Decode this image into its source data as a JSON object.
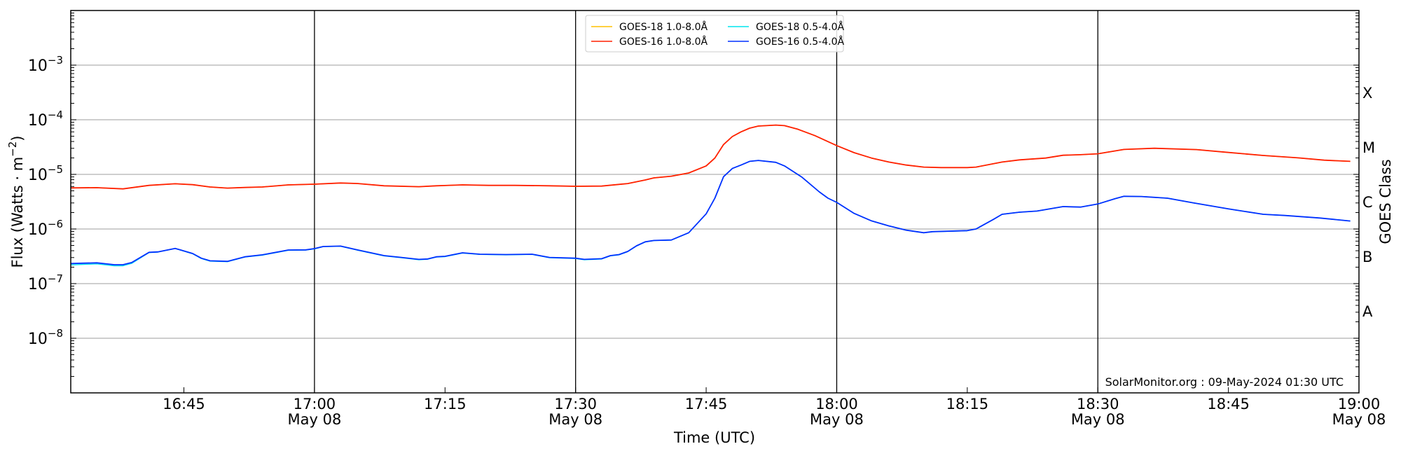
{
  "chart_data": {
    "type": "line",
    "title": "",
    "xlabel": "Time (UTC)",
    "ylabel": "Flux (Watts · m",
    "ylabel_sup": "−2",
    "ylabel_close": ")",
    "y2label": "GOES Class",
    "yscale": "log",
    "ylim": [
      1e-09,
      0.01
    ],
    "xlim": [
      "16:32",
      "19:00"
    ],
    "grid": "horizontal at decades",
    "legend_position": "top-center",
    "y_ticks": [
      {
        "value": 0.001,
        "base": "10",
        "exp": "−3"
      },
      {
        "value": 0.0001,
        "base": "10",
        "exp": "−4"
      },
      {
        "value": 1e-05,
        "base": "10",
        "exp": "−5"
      },
      {
        "value": 1e-06,
        "base": "10",
        "exp": "−6"
      },
      {
        "value": 1e-07,
        "base": "10",
        "exp": "−7"
      },
      {
        "value": 1e-08,
        "base": "10",
        "exp": "−8"
      }
    ],
    "class_labels": [
      {
        "label": "X",
        "value": 0.000316
      },
      {
        "label": "M",
        "value": 3.16e-05
      },
      {
        "label": "C",
        "value": 3.16e-06
      },
      {
        "label": "B",
        "value": 3.16e-07
      },
      {
        "label": "A",
        "value": 3.16e-08
      }
    ],
    "x_ticks": [
      {
        "time": "16:45",
        "label": "16:45",
        "date": ""
      },
      {
        "time": "17:00",
        "label": "17:00",
        "date": "May 08"
      },
      {
        "time": "17:15",
        "label": "17:15",
        "date": ""
      },
      {
        "time": "17:30",
        "label": "17:30",
        "date": "May 08"
      },
      {
        "time": "17:45",
        "label": "17:45",
        "date": ""
      },
      {
        "time": "18:00",
        "label": "18:00",
        "date": "May 08"
      },
      {
        "time": "18:15",
        "label": "18:15",
        "date": ""
      },
      {
        "time": "18:30",
        "label": "18:30",
        "date": "May 08"
      },
      {
        "time": "18:45",
        "label": "18:45",
        "date": ""
      },
      {
        "time": "19:00",
        "label": "19:00",
        "date": "May 08"
      }
    ],
    "vertical_markers": [
      "17:00",
      "17:30",
      "18:00",
      "18:30"
    ],
    "annotation": "SolarMonitor.org : 09-May-2024 01:30 UTC",
    "series": [
      {
        "name": "GOES-18 1.0-8.0Å",
        "color": "#ffc000",
        "x": [
          "16:32",
          "16:35",
          "16:38",
          "16:41",
          "16:44",
          "16:46",
          "16:48",
          "16:50",
          "16:52",
          "16:54",
          "16:57",
          "17:00",
          "17:03",
          "17:05",
          "17:08",
          "17:12",
          "17:14",
          "17:17",
          "17:20",
          "17:23",
          "17:27",
          "17:30",
          "17:33",
          "17:36",
          "17:38",
          "17:39",
          "17:41",
          "17:43",
          "17:45",
          "17:46",
          "17:47",
          "17:48",
          "17:49",
          "17:50",
          "17:51",
          "17:53",
          "17:54",
          "17:55:30",
          "17:57:30",
          "18:00",
          "18:02",
          "18:04",
          "18:06",
          "18:08",
          "18:10",
          "18:12",
          "18:15",
          "18:16",
          "18:19",
          "18:21",
          "18:24",
          "18:26",
          "18:28",
          "18:30",
          "18:33",
          "18:36:30",
          "18:41:20",
          "18:44:40",
          "18:49",
          "18:53",
          "18:56",
          "18:59"
        ],
        "values": [
          5.65e-06,
          5.7e-06,
          5.43e-06,
          6.3e-06,
          6.74e-06,
          6.48e-06,
          5.87e-06,
          5.6e-06,
          5.76e-06,
          5.87e-06,
          6.42e-06,
          6.62e-06,
          6.95e-06,
          6.8e-06,
          6.18e-06,
          5.94e-06,
          6.18e-06,
          6.42e-06,
          6.3e-06,
          6.3e-06,
          6.18e-06,
          6.05e-06,
          6.1e-06,
          6.8e-06,
          7.89e-06,
          8.63e-06,
          9.25e-06,
          1.06e-05,
          1.43e-05,
          1.99e-05,
          3.52e-05,
          4.92e-05,
          6e-05,
          7.02e-05,
          7.67e-05,
          7.98e-05,
          7.8e-05,
          6.74e-05,
          5.12e-05,
          3.36e-05,
          2.5e-05,
          1.99e-05,
          1.68e-05,
          1.48e-05,
          1.36e-05,
          1.33e-05,
          1.33e-05,
          1.36e-05,
          1.68e-05,
          1.84e-05,
          1.99e-05,
          2.24e-05,
          2.29e-05,
          2.38e-05,
          2.86e-05,
          3.01e-05,
          2.84e-05,
          2.55e-05,
          2.22e-05,
          2.01e-05,
          1.82e-05,
          1.73e-05
        ]
      },
      {
        "name": "GOES-18 0.5-4.0Å",
        "color": "#00e5ee",
        "x": [
          "16:32",
          "16:35",
          "16:37",
          "16:38",
          "16:39",
          "16:41",
          "16:42",
          "16:44",
          "16:46",
          "16:47",
          "16:48",
          "16:50",
          "16:52",
          "16:54",
          "16:57",
          "16:59",
          "17:00",
          "17:01",
          "17:03",
          "17:05",
          "17:08",
          "17:10",
          "17:12",
          "17:13",
          "17:14",
          "17:15",
          "17:17",
          "17:19",
          "17:22",
          "17:25",
          "17:27",
          "17:30",
          "17:31",
          "17:33",
          "17:34",
          "17:35",
          "17:36",
          "17:37",
          "17:38",
          "17:39",
          "17:41",
          "17:43",
          "17:45",
          "17:46",
          "17:47",
          "17:48",
          "17:49",
          "17:50",
          "17:51",
          "17:53",
          "17:54",
          "17:56",
          "17:58",
          "17:59",
          "18:00",
          "18:02",
          "18:04",
          "18:06",
          "18:08",
          "18:10",
          "18:11",
          "18:15",
          "18:16",
          "18:18",
          "18:19",
          "18:21",
          "18:23",
          "18:26",
          "18:28",
          "18:30",
          "18:32",
          "18:33",
          "18:35",
          "18:38",
          "18:41",
          "18:45",
          "18:49",
          "18:51:30",
          "18:55:30",
          "18:59"
        ],
        "values": [
          2.2e-07,
          2.3e-07,
          2.12e-07,
          2.12e-07,
          2.35e-07,
          3.7e-07,
          3.78e-07,
          4.4e-07,
          3.52e-07,
          2.88e-07,
          2.58e-07,
          2.52e-07,
          3.06e-07,
          3.32e-07,
          4.08e-07,
          4.12e-07,
          4.33e-07,
          4.75e-07,
          4.83e-07,
          4.08e-07,
          3.22e-07,
          2.98e-07,
          2.74e-07,
          2.79e-07,
          3.06e-07,
          3.12e-07,
          3.62e-07,
          3.42e-07,
          3.36e-07,
          3.42e-07,
          2.98e-07,
          2.88e-07,
          2.74e-07,
          2.82e-07,
          3.22e-07,
          3.36e-07,
          3.85e-07,
          4.88e-07,
          5.78e-07,
          6.13e-07,
          6.26e-07,
          8.5e-07,
          1.89e-06,
          3.66e-06,
          9.05e-06,
          1.28e-05,
          1.48e-05,
          1.73e-05,
          1.8e-05,
          1.66e-05,
          1.43e-05,
          8.89e-06,
          4.78e-06,
          3.67e-06,
          3.07e-06,
          1.93e-06,
          1.41e-06,
          1.14e-06,
          9.5e-07,
          8.52e-07,
          8.92e-07,
          9.3e-07,
          1e-06,
          1.5e-06,
          1.86e-06,
          2.03e-06,
          2.13e-06,
          2.57e-06,
          2.52e-06,
          2.87e-06,
          3.6e-06,
          3.97e-06,
          3.93e-06,
          3.67e-06,
          3.01e-06,
          2.33e-06,
          1.86e-06,
          1.77e-06,
          1.59e-06,
          1.4e-06
        ]
      },
      {
        "name": "GOES-16 1.0-8.0Å",
        "color": "#ff2000",
        "x": [
          "16:32",
          "16:35",
          "16:38",
          "16:41",
          "16:44",
          "16:46",
          "16:48",
          "16:50",
          "16:52",
          "16:54",
          "16:57",
          "17:00",
          "17:03",
          "17:05",
          "17:08",
          "17:12",
          "17:14",
          "17:17",
          "17:20",
          "17:23",
          "17:27",
          "17:30",
          "17:33",
          "17:36",
          "17:38",
          "17:39",
          "17:41",
          "17:43",
          "17:45",
          "17:46",
          "17:47",
          "17:48",
          "17:49",
          "17:50",
          "17:51",
          "17:53",
          "17:54",
          "17:55:30",
          "17:57:30",
          "18:00",
          "18:02",
          "18:04",
          "18:06",
          "18:08",
          "18:10",
          "18:12",
          "18:15",
          "18:16",
          "18:19",
          "18:21",
          "18:24",
          "18:26",
          "18:28",
          "18:30",
          "18:33",
          "18:36:30",
          "18:41:20",
          "18:44:40",
          "18:49",
          "18:53",
          "18:56",
          "18:59"
        ],
        "values": [
          5.65e-06,
          5.7e-06,
          5.43e-06,
          6.3e-06,
          6.74e-06,
          6.48e-06,
          5.87e-06,
          5.6e-06,
          5.76e-06,
          5.87e-06,
          6.42e-06,
          6.62e-06,
          6.95e-06,
          6.8e-06,
          6.18e-06,
          5.94e-06,
          6.18e-06,
          6.42e-06,
          6.3e-06,
          6.3e-06,
          6.18e-06,
          6.05e-06,
          6.1e-06,
          6.8e-06,
          7.89e-06,
          8.63e-06,
          9.25e-06,
          1.06e-05,
          1.43e-05,
          1.99e-05,
          3.52e-05,
          4.92e-05,
          6e-05,
          7.02e-05,
          7.67e-05,
          7.98e-05,
          7.8e-05,
          6.74e-05,
          5.12e-05,
          3.36e-05,
          2.5e-05,
          1.99e-05,
          1.68e-05,
          1.48e-05,
          1.36e-05,
          1.33e-05,
          1.33e-05,
          1.36e-05,
          1.68e-05,
          1.84e-05,
          1.99e-05,
          2.24e-05,
          2.29e-05,
          2.38e-05,
          2.86e-05,
          3.01e-05,
          2.84e-05,
          2.55e-05,
          2.22e-05,
          2.01e-05,
          1.82e-05,
          1.73e-05
        ]
      },
      {
        "name": "GOES-16 0.5-4.0Å",
        "color": "#0030ff",
        "x": [
          "16:32",
          "16:35",
          "16:37",
          "16:38",
          "16:39",
          "16:41",
          "16:42",
          "16:44",
          "16:46",
          "16:47",
          "16:48",
          "16:50",
          "16:52",
          "16:54",
          "16:57",
          "16:59",
          "17:00",
          "17:01",
          "17:03",
          "17:05",
          "17:08",
          "17:10",
          "17:12",
          "17:13",
          "17:14",
          "17:15",
          "17:17",
          "17:19",
          "17:22",
          "17:25",
          "17:27",
          "17:30",
          "17:31",
          "17:33",
          "17:34",
          "17:35",
          "17:36",
          "17:37",
          "17:38",
          "17:39",
          "17:41",
          "17:43",
          "17:45",
          "17:46",
          "17:47",
          "17:48",
          "17:49",
          "17:50",
          "17:51",
          "17:53",
          "17:54",
          "17:56",
          "17:58",
          "17:59",
          "18:00",
          "18:02",
          "18:04",
          "18:06",
          "18:08",
          "18:10",
          "18:11",
          "18:15",
          "18:16",
          "18:18",
          "18:19",
          "18:21",
          "18:23",
          "18:26",
          "18:28",
          "18:30",
          "18:32",
          "18:33",
          "18:35",
          "18:38",
          "18:41",
          "18:45",
          "18:49",
          "18:51:30",
          "18:55:30",
          "18:59"
        ],
        "values": [
          2.33e-07,
          2.4e-07,
          2.22e-07,
          2.22e-07,
          2.43e-07,
          3.74e-07,
          3.81e-07,
          4.42e-07,
          3.56e-07,
          2.92e-07,
          2.62e-07,
          2.56e-07,
          3.1e-07,
          3.36e-07,
          4.12e-07,
          4.15e-07,
          4.37e-07,
          4.78e-07,
          4.86e-07,
          4.12e-07,
          3.26e-07,
          3.02e-07,
          2.78e-07,
          2.83e-07,
          3.1e-07,
          3.16e-07,
          3.66e-07,
          3.46e-07,
          3.4e-07,
          3.46e-07,
          3.02e-07,
          2.92e-07,
          2.78e-07,
          2.86e-07,
          3.26e-07,
          3.4e-07,
          3.89e-07,
          4.92e-07,
          5.82e-07,
          6.17e-07,
          6.3e-07,
          8.55e-07,
          1.9e-06,
          3.67e-06,
          9.06e-06,
          1.28e-05,
          1.48e-05,
          1.73e-05,
          1.8e-05,
          1.66e-05,
          1.43e-05,
          8.89e-06,
          4.78e-06,
          3.67e-06,
          3.07e-06,
          1.93e-06,
          1.41e-06,
          1.14e-06,
          9.52e-07,
          8.55e-07,
          8.95e-07,
          9.33e-07,
          1e-06,
          1.5e-06,
          1.86e-06,
          2.03e-06,
          2.13e-06,
          2.57e-06,
          2.52e-06,
          2.87e-06,
          3.6e-06,
          3.97e-06,
          3.93e-06,
          3.67e-06,
          3.01e-06,
          2.33e-06,
          1.86e-06,
          1.77e-06,
          1.59e-06,
          1.4e-06
        ]
      }
    ],
    "legend_order": [
      0,
      1,
      2,
      3
    ]
  }
}
